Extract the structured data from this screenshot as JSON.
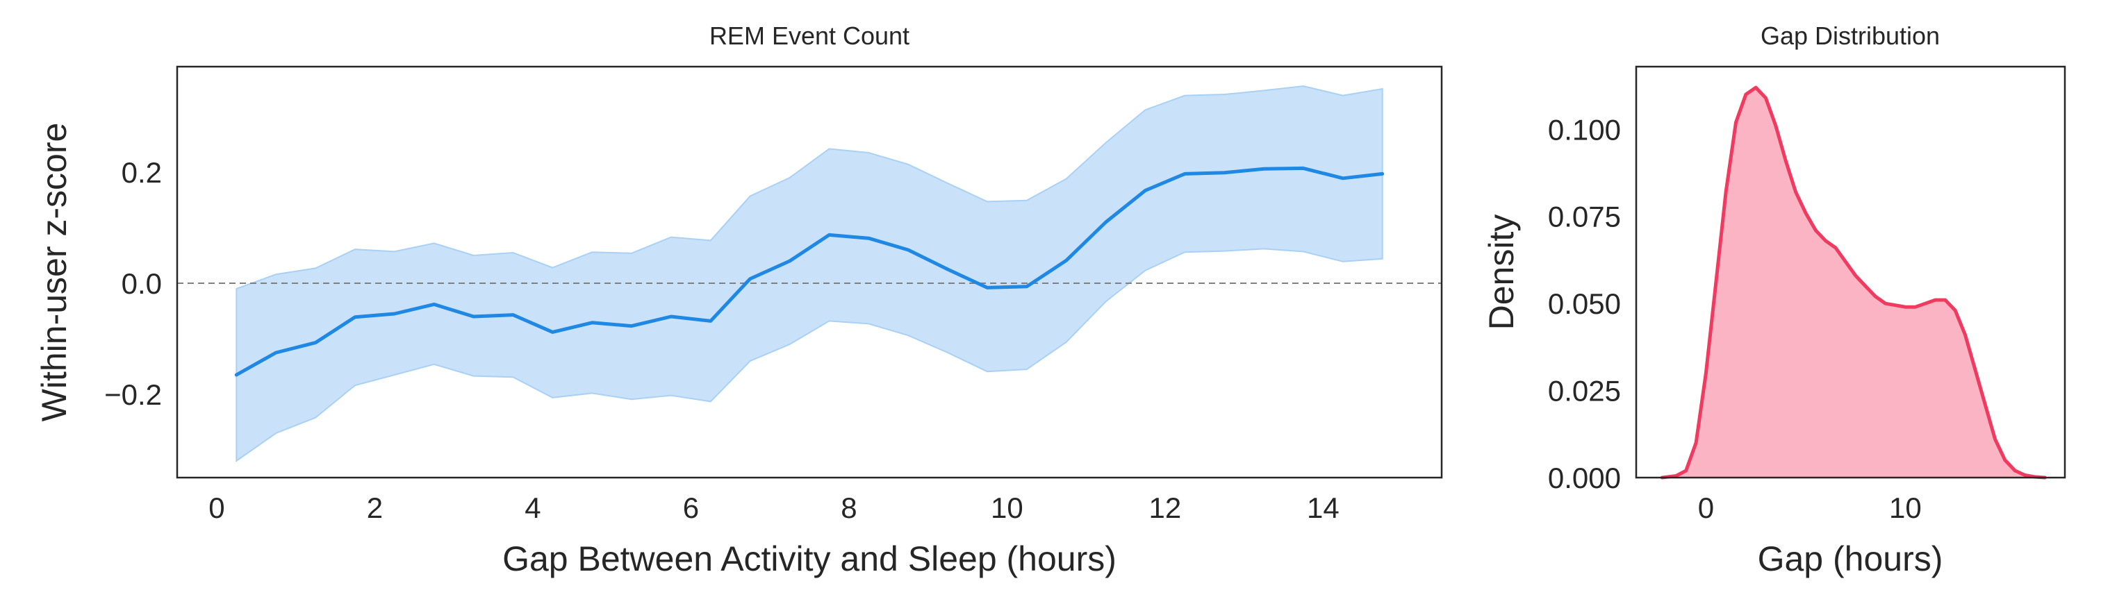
{
  "chart_data": [
    {
      "type": "line",
      "title": "REM Event Count",
      "xlabel": "Gap Between Activity and Sleep (hours)",
      "ylabel": "Within-user z-score",
      "xlim": [
        -0.5,
        15.5
      ],
      "ylim": [
        -0.35,
        0.39
      ],
      "xticks": [
        0,
        2,
        4,
        6,
        8,
        10,
        12,
        14
      ],
      "xtick_labels": [
        "0",
        "2",
        "4",
        "6",
        "8",
        "10",
        "12",
        "14"
      ],
      "yticks": [
        -0.2,
        0.0,
        0.2
      ],
      "ytick_labels": [
        "−0.2",
        "0.0",
        "0.2"
      ],
      "reference_line": {
        "y": 0.0,
        "style": "dashed",
        "color": "#808080"
      },
      "colors": {
        "line": "#1f88e5",
        "band": "#c9e2fa",
        "band_edge": "#a9d0f5"
      },
      "grid": false,
      "series": [
        {
          "x": [
            0.25,
            0.75,
            1.25,
            1.75,
            2.25,
            2.75,
            3.25,
            3.75,
            4.25,
            4.75,
            5.25,
            5.75,
            6.25,
            6.75,
            7.25,
            7.75,
            8.25,
            8.75,
            9.25,
            9.75,
            10.25,
            10.75,
            11.25,
            11.75,
            12.25,
            12.75,
            13.25,
            13.75,
            14.25,
            14.75
          ],
          "y": [
            -0.165,
            -0.125,
            -0.107,
            -0.061,
            -0.055,
            -0.038,
            -0.06,
            -0.057,
            -0.088,
            -0.071,
            -0.077,
            -0.06,
            -0.068,
            0.008,
            0.04,
            0.087,
            0.081,
            0.06,
            0.025,
            -0.008,
            -0.006,
            0.041,
            0.11,
            0.167,
            0.197,
            0.199,
            0.206,
            0.207,
            0.189,
            0.197
          ],
          "lower": [
            -0.32,
            -0.27,
            -0.242,
            -0.184,
            -0.165,
            -0.146,
            -0.167,
            -0.169,
            -0.206,
            -0.198,
            -0.209,
            -0.202,
            -0.213,
            -0.14,
            -0.11,
            -0.068,
            -0.073,
            -0.094,
            -0.125,
            -0.159,
            -0.155,
            -0.106,
            -0.033,
            0.023,
            0.056,
            0.058,
            0.062,
            0.057,
            0.039,
            0.044
          ],
          "upper": [
            -0.01,
            0.016,
            0.027,
            0.061,
            0.057,
            0.072,
            0.05,
            0.055,
            0.028,
            0.056,
            0.054,
            0.083,
            0.077,
            0.157,
            0.19,
            0.242,
            0.235,
            0.214,
            0.18,
            0.147,
            0.149,
            0.188,
            0.253,
            0.312,
            0.338,
            0.34,
            0.347,
            0.355,
            0.338,
            0.35
          ]
        }
      ]
    },
    {
      "type": "area",
      "title": "Gap Distribution",
      "xlabel": "Gap (hours)",
      "ylabel": "Density",
      "xlim": [
        -3.5,
        18.0
      ],
      "ylim": [
        0.0,
        0.118
      ],
      "xticks": [
        0,
        10
      ],
      "xtick_labels": [
        "0",
        "10"
      ],
      "yticks": [
        0.0,
        0.025,
        0.05,
        0.075,
        0.1
      ],
      "ytick_labels": [
        "0.000",
        "0.025",
        "0.050",
        "0.075",
        "0.100"
      ],
      "colors": {
        "line": "#f03a5f",
        "fill": "#fbb4c3"
      },
      "grid": false,
      "series": [
        {
          "x": [
            -2.2,
            -1.5,
            -1.0,
            -0.5,
            0.0,
            0.5,
            1.0,
            1.5,
            2.0,
            2.5,
            3.0,
            3.5,
            4.0,
            4.5,
            5.0,
            5.5,
            6.0,
            6.5,
            7.0,
            7.5,
            8.0,
            8.5,
            9.0,
            9.5,
            10.0,
            10.5,
            11.0,
            11.5,
            12.0,
            12.5,
            13.0,
            13.5,
            14.0,
            14.5,
            15.0,
            15.5,
            16.0,
            16.5,
            17.0
          ],
          "y": [
            0.0,
            0.0005,
            0.002,
            0.01,
            0.03,
            0.056,
            0.082,
            0.102,
            0.11,
            0.112,
            0.109,
            0.101,
            0.091,
            0.082,
            0.076,
            0.071,
            0.068,
            0.066,
            0.062,
            0.058,
            0.055,
            0.052,
            0.05,
            0.0495,
            0.049,
            0.049,
            0.05,
            0.051,
            0.051,
            0.048,
            0.041,
            0.031,
            0.021,
            0.011,
            0.005,
            0.002,
            0.0007,
            0.0002,
            0.0
          ]
        }
      ]
    }
  ]
}
